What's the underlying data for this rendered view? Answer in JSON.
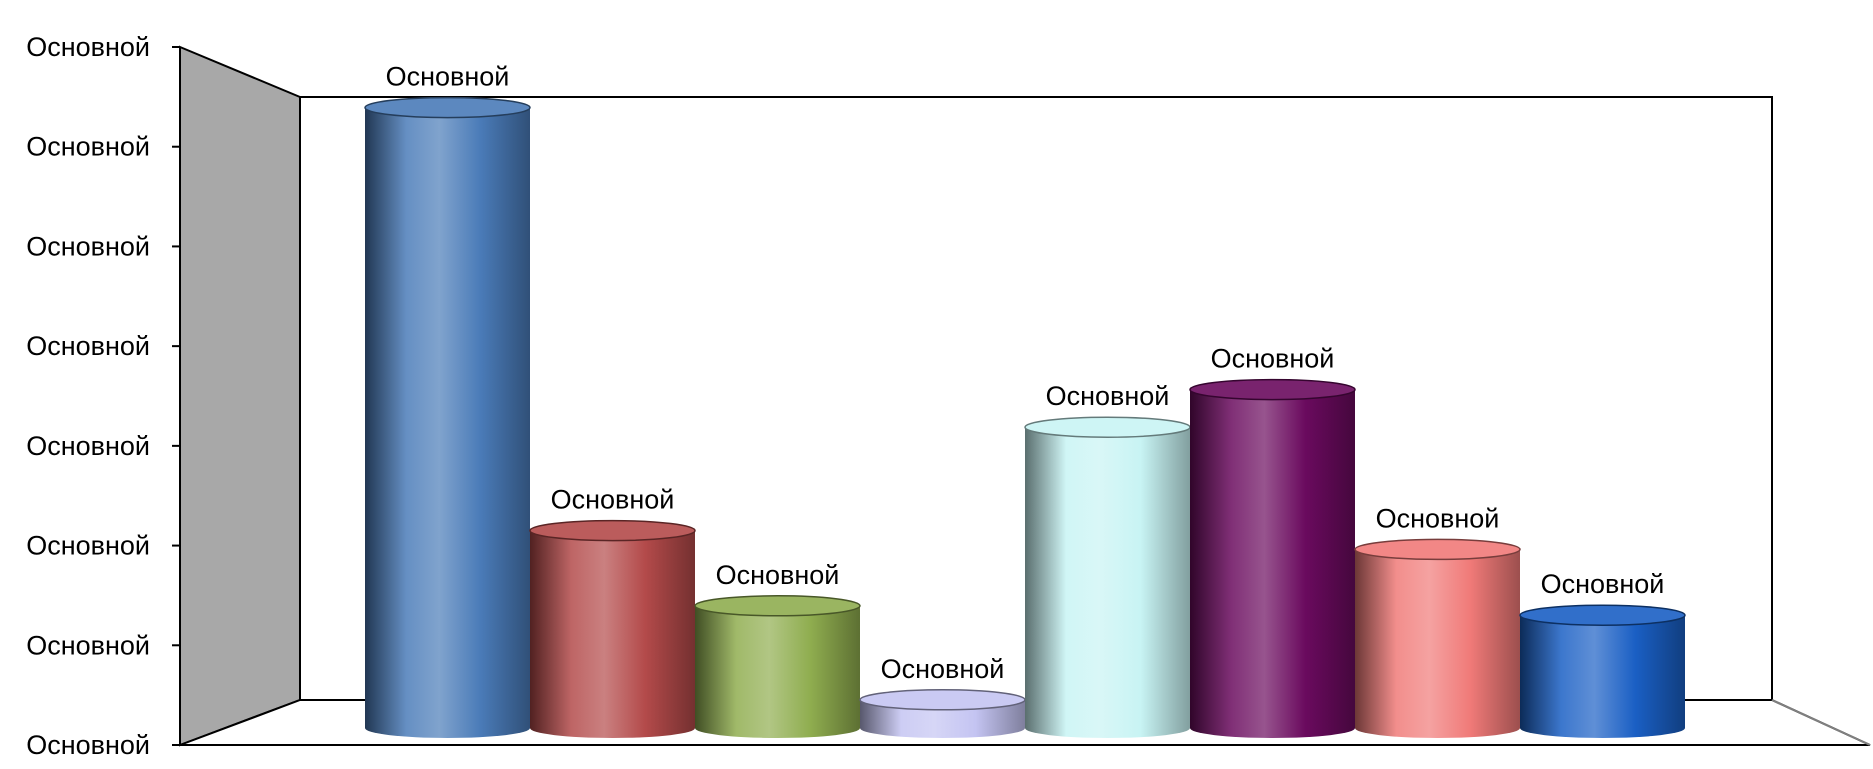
{
  "chart_data": {
    "type": "bar",
    "style": "3d-cylinder",
    "ylim": [
      0,
      7
    ],
    "y_tick_labels": [
      "Основной",
      "Основной",
      "Основной",
      "Основной",
      "Основной",
      "Основной",
      "Основной",
      "Основной"
    ],
    "data_labels": [
      "Основной",
      "Основной",
      "Основной",
      "Основной",
      "Основной",
      "Основной",
      "Основной",
      "Основной"
    ],
    "values": [
      6.6,
      2.1,
      1.3,
      0.3,
      3.2,
      3.6,
      1.9,
      1.2
    ],
    "colors": [
      "#4a7bb8",
      "#b34a4a",
      "#8fad4f",
      "#c4c4f2",
      "#c8f4f4",
      "#6a0a5e",
      "#f07a78",
      "#1a5fc4"
    ],
    "grid": false,
    "legend": false
  }
}
